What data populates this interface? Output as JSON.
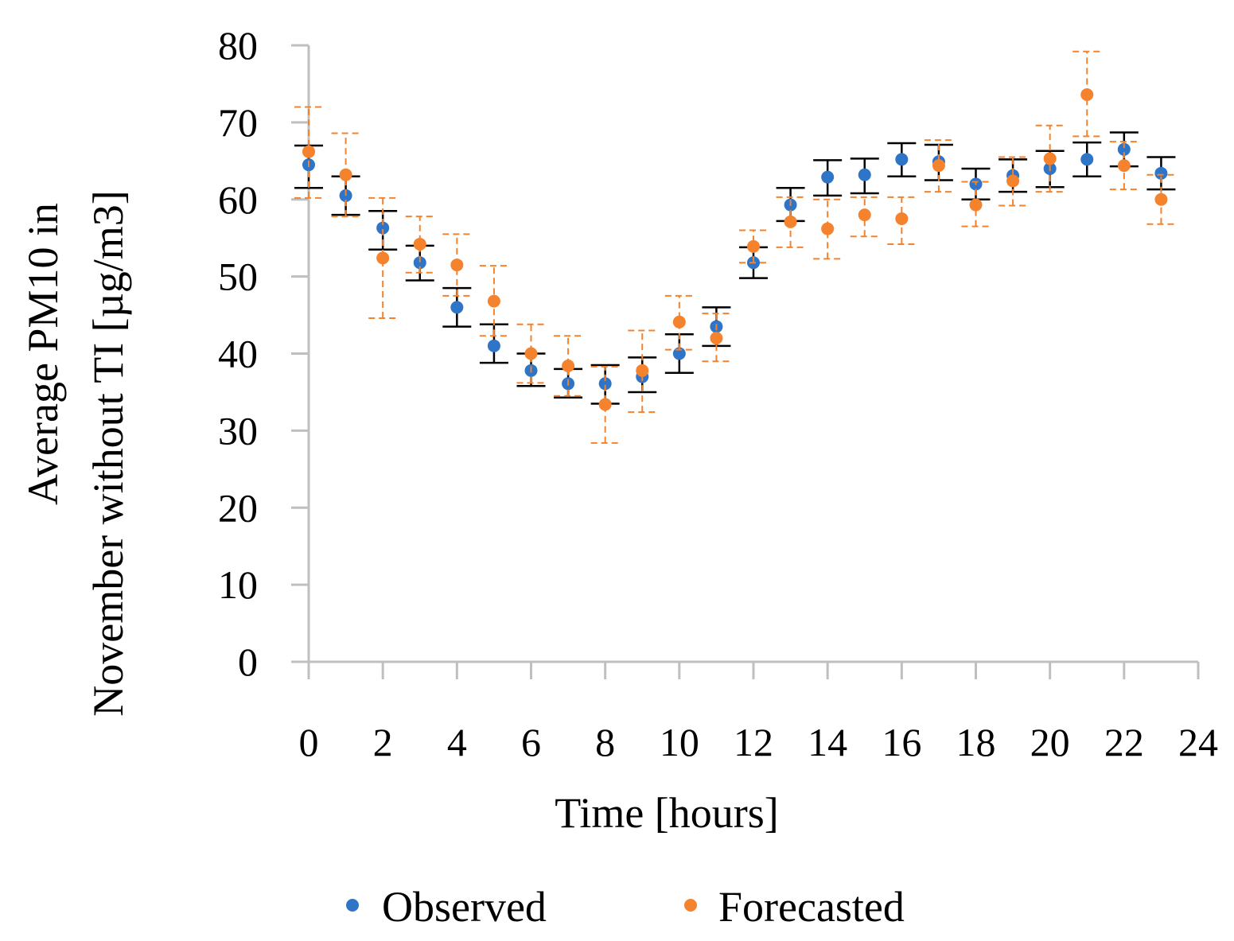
{
  "chart_data": {
    "type": "scatter",
    "title": "",
    "xlabel": "Time [hours]",
    "ylabel_lines": [
      "Average PM10 in",
      "November without TI [µg/m3]"
    ],
    "xlim": [
      0,
      24
    ],
    "ylim": [
      0,
      80
    ],
    "x_ticks": [
      0,
      2,
      4,
      6,
      8,
      10,
      12,
      14,
      16,
      18,
      20,
      22,
      24
    ],
    "y_ticks": [
      0,
      10,
      20,
      30,
      40,
      50,
      60,
      70,
      80
    ],
    "grid": false,
    "legend_position": "bottom",
    "axis_color": "#bfbfbf",
    "series": [
      {
        "name": "Observed",
        "color": "#2e75c8",
        "error_color": "#000000",
        "error_style": "solid",
        "x": [
          0,
          1,
          2,
          3,
          4,
          5,
          6,
          7,
          8,
          9,
          10,
          11,
          12,
          13,
          14,
          15,
          16,
          17,
          18,
          19,
          20,
          21,
          22,
          23
        ],
        "y": [
          64.5,
          60.5,
          56.3,
          51.8,
          46.0,
          41.0,
          37.8,
          36.1,
          36.1,
          37.0,
          40.0,
          43.5,
          51.8,
          59.3,
          62.9,
          63.2,
          65.2,
          64.9,
          62.0,
          63.1,
          64.0,
          65.2,
          66.5,
          63.4
        ],
        "err_low": [
          61.5,
          58.0,
          53.5,
          49.5,
          43.5,
          38.8,
          35.8,
          34.3,
          33.5,
          35.0,
          37.5,
          41.0,
          49.8,
          57.2,
          60.5,
          60.8,
          63.0,
          62.5,
          60.0,
          61.0,
          61.6,
          63.0,
          64.3,
          61.3
        ],
        "err_high": [
          67.0,
          63.0,
          58.5,
          54.0,
          48.5,
          43.8,
          40.0,
          38.0,
          38.5,
          39.5,
          42.5,
          46.0,
          53.8,
          61.5,
          65.1,
          65.3,
          67.3,
          67.1,
          64.0,
          65.2,
          66.3,
          67.4,
          68.7,
          65.5
        ]
      },
      {
        "name": "Forecasted",
        "color": "#f5822d",
        "error_color": "#f5822d",
        "error_style": "dashed",
        "x": [
          0,
          1,
          2,
          3,
          4,
          5,
          6,
          7,
          8,
          9,
          10,
          11,
          12,
          13,
          14,
          15,
          16,
          17,
          18,
          19,
          20,
          21,
          22,
          23
        ],
        "y": [
          66.2,
          63.2,
          52.4,
          54.2,
          51.5,
          46.8,
          40.0,
          38.4,
          33.4,
          37.8,
          44.1,
          42.0,
          53.9,
          57.1,
          56.2,
          58.0,
          57.5,
          64.4,
          59.3,
          62.4,
          65.3,
          73.6,
          64.4,
          60.0
        ],
        "err_low": [
          60.2,
          57.8,
          44.6,
          50.5,
          47.5,
          42.3,
          36.2,
          34.5,
          28.4,
          32.4,
          40.5,
          39.0,
          51.8,
          53.8,
          52.3,
          55.2,
          54.2,
          61.0,
          56.5,
          59.2,
          61.0,
          68.2,
          61.3,
          56.8
        ],
        "err_high": [
          72.0,
          68.6,
          60.2,
          57.8,
          55.5,
          51.4,
          43.8,
          42.3,
          38.3,
          43.0,
          47.5,
          45.2,
          56.0,
          60.3,
          60.0,
          60.3,
          60.3,
          67.7,
          62.3,
          65.5,
          69.6,
          79.2,
          67.5,
          63.2
        ]
      }
    ]
  }
}
